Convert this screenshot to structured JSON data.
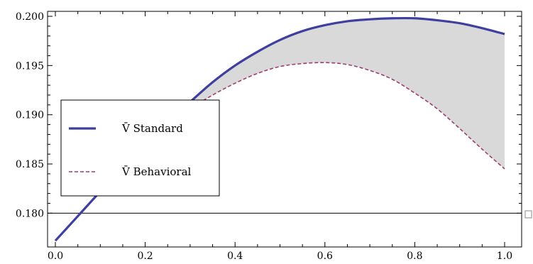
{
  "chart_data": {
    "type": "line",
    "title": "",
    "xlabel": "",
    "ylabel": "",
    "xlim": [
      0.0,
      1.0
    ],
    "ylim": [
      0.177,
      0.2
    ],
    "x_ticks": [
      "0.0",
      "0.2",
      "0.4",
      "0.6",
      "0.8",
      "1.0"
    ],
    "y_ticks": [
      "0.180",
      "0.185",
      "0.190",
      "0.195",
      "0.200"
    ],
    "reference_line": {
      "y": 0.18
    },
    "shaded_region": "between series",
    "legend_position": "left",
    "grid": false,
    "x": [
      0.0,
      0.05,
      0.1,
      0.15,
      0.2,
      0.25,
      0.3,
      0.35,
      0.4,
      0.45,
      0.5,
      0.55,
      0.6,
      0.65,
      0.7,
      0.75,
      0.8,
      0.85,
      0.9,
      0.95,
      1.0
    ],
    "series": [
      {
        "name": "V̄  Standard",
        "color": "#3f3f9f",
        "style": "solid",
        "values": [
          0.1772,
          0.1797,
          0.1822,
          0.1846,
          0.1869,
          0.1892,
          0.1913,
          0.1933,
          0.195,
          0.1964,
          0.1976,
          0.1985,
          0.1991,
          0.1995,
          0.1997,
          0.1998,
          0.1998,
          0.1996,
          0.1993,
          0.1988,
          0.1982
        ]
      },
      {
        "name": "V̄  Behavioral",
        "color": "#9b3f6f",
        "style": "dashed",
        "values": [
          0.1772,
          0.1797,
          0.1822,
          0.1846,
          0.1869,
          0.1889,
          0.1906,
          0.192,
          0.1932,
          0.1942,
          0.1949,
          0.1952,
          0.1953,
          0.1951,
          0.1945,
          0.1936,
          0.1922,
          0.1906,
          0.1886,
          0.1865,
          0.1845
        ]
      }
    ]
  }
}
